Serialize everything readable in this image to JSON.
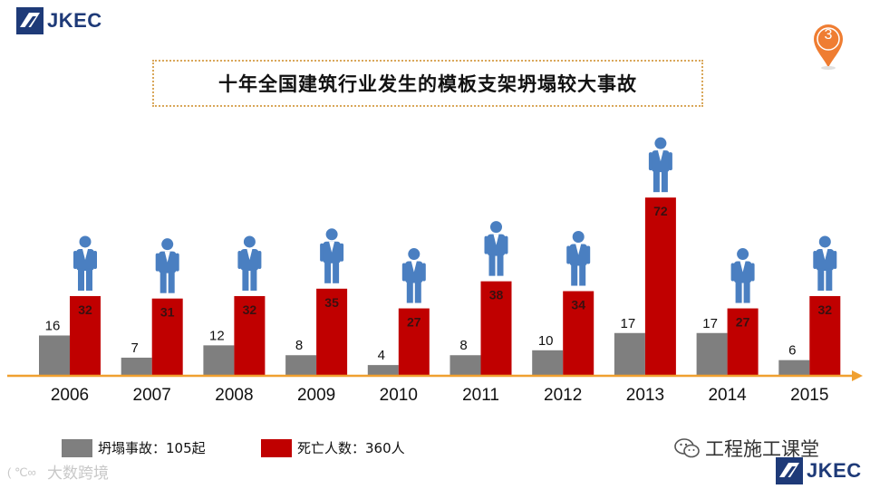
{
  "logo": {
    "text": "JKEC"
  },
  "page_number": "3",
  "colors": {
    "accidents": "#7f7f7f",
    "deaths": "#c00000",
    "axis": "#f0a030",
    "figure": "#4a7fc1"
  },
  "chart_data": {
    "type": "bar",
    "title": "十年全国建筑行业发生的模板支架坍塌较大事故",
    "categories": [
      "2006",
      "2007",
      "2008",
      "2009",
      "2010",
      "2011",
      "2012",
      "2013",
      "2014",
      "2015"
    ],
    "series": [
      {
        "name": "坍塌事故",
        "values": [
          16,
          7,
          12,
          8,
          4,
          8,
          10,
          17,
          17,
          6
        ]
      },
      {
        "name": "死亡人数",
        "values": [
          32,
          31,
          32,
          35,
          27,
          38,
          34,
          72,
          27,
          32
        ]
      }
    ],
    "legend": [
      "坍塌事故：105起",
      "死亡人数：360人"
    ],
    "legend_position": "bottom-left",
    "grid": false
  },
  "wechat_label": "工程施工课堂",
  "watermark": "大数跨境"
}
